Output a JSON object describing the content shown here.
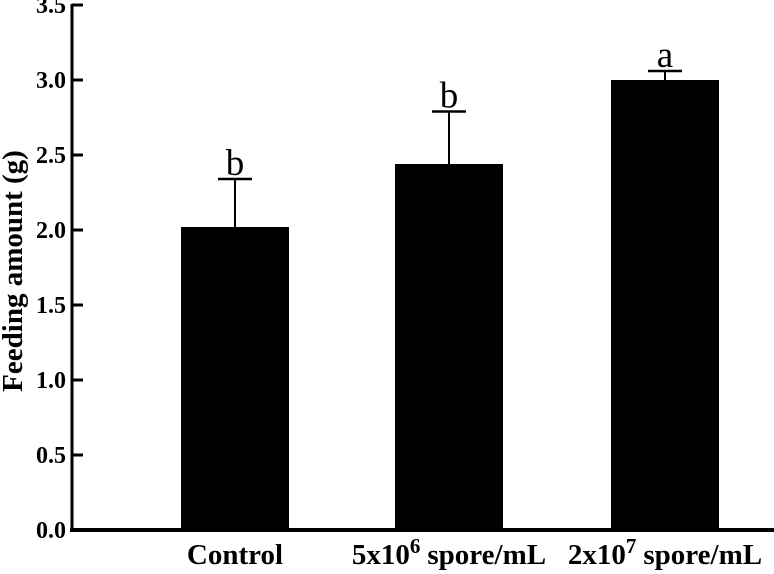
{
  "figure": {
    "background": "#ffffff",
    "ink_color": "#000000"
  },
  "chart_data": {
    "type": "bar",
    "title": "",
    "xlabel": "",
    "ylabel": "Feeding amount (g)",
    "ylim": [
      0,
      3.5
    ],
    "ytick_step": 0.5,
    "ytick_labels": [
      "0.0",
      "0.5",
      "1.0",
      "1.5",
      "2.0",
      "2.5",
      "3.0",
      "3.5"
    ],
    "grid": false,
    "legend": "none",
    "bar_color": "#000000",
    "error_bar_direction": "upper-only",
    "categories": [
      "Control",
      "5x10^6 spore/mL",
      "2x10^7 spore/mL"
    ],
    "x_tick_parts": [
      {
        "base": "Control",
        "exp": "",
        "suffix": ""
      },
      {
        "base": "5x10",
        "exp": "6",
        "suffix": " spore/mL"
      },
      {
        "base": "2x10",
        "exp": "7",
        "suffix": " spore/mL"
      }
    ],
    "series": [
      {
        "name": "Feeding amount",
        "values": [
          2.02,
          2.44,
          3.0
        ],
        "errors_upper": [
          0.32,
          0.35,
          0.06
        ],
        "sig_letters": [
          "b",
          "b",
          "a"
        ]
      }
    ]
  }
}
